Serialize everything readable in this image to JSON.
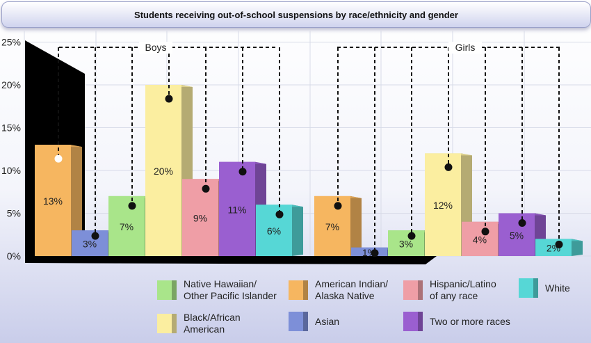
{
  "chart_data": {
    "type": "bar",
    "title": "Students receiving out-of-school suspensions by race/ethnicity and gender",
    "ylim": [
      0,
      25
    ],
    "yticks": [
      "0%",
      "5%",
      "10%",
      "15%",
      "20%",
      "25%"
    ],
    "groups": [
      {
        "label": "Boys",
        "bars": [
          {
            "series": "American Indian/ Alaska Native",
            "value": 13,
            "label": "13%"
          },
          {
            "series": "Asian",
            "value": 3,
            "label": "3%"
          },
          {
            "series": "Native Hawaiian/ Other Pacific Islander",
            "value": 7,
            "label": "7%"
          },
          {
            "series": "Black/African American",
            "value": 20,
            "label": "20%"
          },
          {
            "series": "Hispanic/Latino of any race",
            "value": 9,
            "label": "9%"
          },
          {
            "series": "Two or more races",
            "value": 11,
            "label": "11%"
          },
          {
            "series": "White",
            "value": 6,
            "label": "6%"
          }
        ]
      },
      {
        "label": "Girls",
        "bars": [
          {
            "series": "American Indian/ Alaska Native",
            "value": 7,
            "label": "7%"
          },
          {
            "series": "Asian",
            "value": 1,
            "label": "1%"
          },
          {
            "series": "Native Hawaiian/ Other Pacific Islander",
            "value": 3,
            "label": "3%"
          },
          {
            "series": "Black/African American",
            "value": 12,
            "label": "12%"
          },
          {
            "series": "Hispanic/Latino of any race",
            "value": 4,
            "label": "4%"
          },
          {
            "series": "Two or more races",
            "value": 5,
            "label": "5%"
          },
          {
            "series": "White",
            "value": 2,
            "label": "2%"
          }
        ]
      }
    ],
    "legend": [
      {
        "name": "Native Hawaiian/\nOther Pacific Islander",
        "color": "#a9e58a"
      },
      {
        "name": "American Indian/\nAlaska Native",
        "color": "#f6b660"
      },
      {
        "name": "Hispanic/Latino\nof any race",
        "color": "#ef9ea6"
      },
      {
        "name": "White",
        "color": "#56d7d6"
      },
      {
        "name": "Black/African\nAmerican",
        "color": "#fbeea0"
      },
      {
        "name": "Asian",
        "color": "#7d8fd8"
      },
      {
        "name": "Two or more races",
        "color": "#9a5fd0"
      }
    ],
    "colors": {
      "American Indian/ Alaska Native": "#f6b660",
      "Asian": "#7d8fd8",
      "Native Hawaiian/ Other Pacific Islander": "#a9e58a",
      "Black/African American": "#fbeea0",
      "Hispanic/Latino of any race": "#ef9ea6",
      "Two or more races": "#9a5fd0",
      "White": "#56d7d6"
    }
  }
}
